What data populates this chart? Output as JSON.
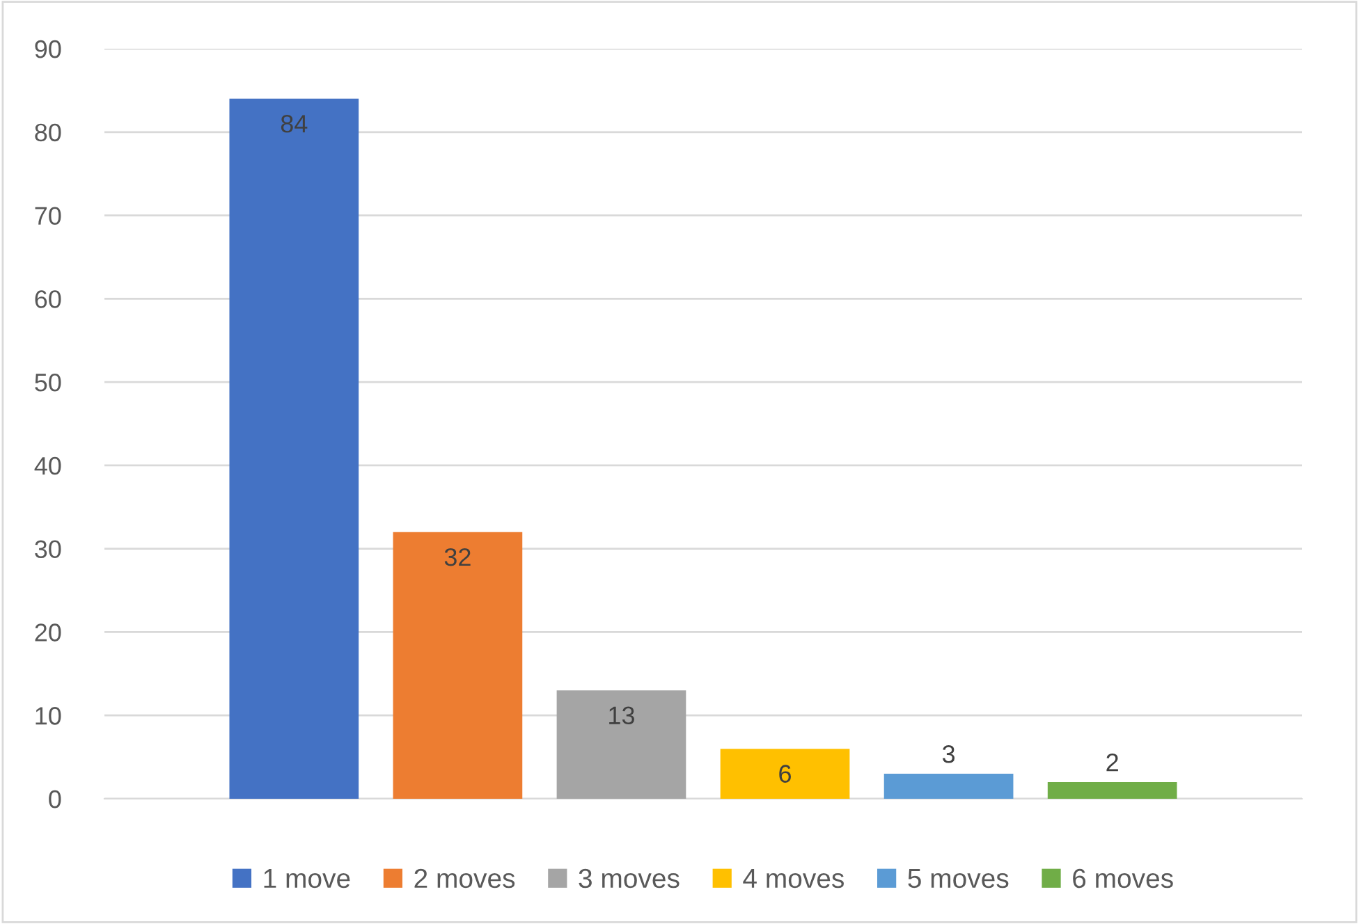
{
  "chart_data": {
    "type": "bar",
    "categories": [
      null
    ],
    "series": [
      {
        "name": "1 move",
        "color": "#4472c4",
        "values": [
          84
        ]
      },
      {
        "name": "2 moves",
        "color": "#ed7d31",
        "values": [
          32
        ]
      },
      {
        "name": "3 moves",
        "color": "#a5a5a5",
        "values": [
          13
        ]
      },
      {
        "name": "4 moves",
        "color": "#ffc000",
        "values": [
          6
        ]
      },
      {
        "name": "5 moves",
        "color": "#5b9bd5",
        "values": [
          3
        ]
      },
      {
        "name": "6 moves",
        "color": "#70ad47",
        "values": [
          2
        ]
      }
    ],
    "ylim": [
      0,
      90
    ],
    "yticks": [
      0,
      10,
      20,
      30,
      40,
      50,
      60,
      70,
      80,
      90
    ],
    "grid": "y",
    "legend": "bottom",
    "data_labels": true
  }
}
